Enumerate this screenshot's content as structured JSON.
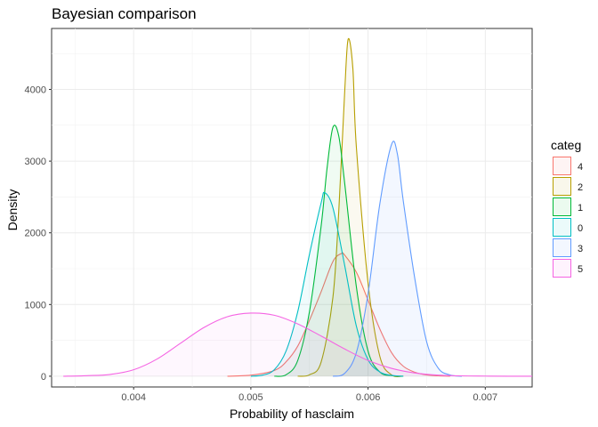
{
  "chart_data": {
    "type": "area",
    "title": "Bayesian comparison",
    "xlabel": "Probability of hasclaim",
    "ylabel": "Density",
    "xlim": [
      0.0033,
      0.0074
    ],
    "ylim": [
      -150,
      4850
    ],
    "x_ticks": [
      0.004,
      0.005,
      0.006,
      0.007
    ],
    "x_tick_labels": [
      "0.004",
      "0.005",
      "0.006",
      "0.007"
    ],
    "y_ticks": [
      0,
      1000,
      2000,
      3000,
      4000
    ],
    "y_tick_labels": [
      "0",
      "1000",
      "2000",
      "3000",
      "4000"
    ],
    "grid": true,
    "legend": {
      "title": "categ",
      "placement": "right"
    },
    "series": [
      {
        "name": "4",
        "color": "#F8766D",
        "fill_opacity": 0.06,
        "points": [
          [
            0.0048,
            0
          ],
          [
            0.005,
            15
          ],
          [
            0.0052,
            80
          ],
          [
            0.0053,
            200
          ],
          [
            0.0054,
            420
          ],
          [
            0.0055,
            780
          ],
          [
            0.0056,
            1180
          ],
          [
            0.0057,
            1600
          ],
          [
            0.00577,
            1710
          ],
          [
            0.0058,
            1690
          ],
          [
            0.0059,
            1450
          ],
          [
            0.006,
            1060
          ],
          [
            0.0061,
            660
          ],
          [
            0.0062,
            330
          ],
          [
            0.0063,
            140
          ],
          [
            0.0064,
            55
          ],
          [
            0.0065,
            18
          ],
          [
            0.0066,
            5
          ],
          [
            0.0067,
            0
          ]
        ]
      },
      {
        "name": "2",
        "color": "#B79F00",
        "fill_opacity": 0.06,
        "points": [
          [
            0.0054,
            0
          ],
          [
            0.0055,
            20
          ],
          [
            0.0056,
            200
          ],
          [
            0.0057,
            1100
          ],
          [
            0.00575,
            2300
          ],
          [
            0.0058,
            3950
          ],
          [
            0.00583,
            4700
          ],
          [
            0.00587,
            4300
          ],
          [
            0.0059,
            3200
          ],
          [
            0.006,
            1300
          ],
          [
            0.0061,
            280
          ],
          [
            0.0062,
            20
          ],
          [
            0.0063,
            0
          ]
        ]
      },
      {
        "name": "1",
        "color": "#00BA38",
        "fill_opacity": 0.06,
        "points": [
          [
            0.0052,
            0
          ],
          [
            0.0053,
            20
          ],
          [
            0.0054,
            220
          ],
          [
            0.0055,
            900
          ],
          [
            0.0056,
            2100
          ],
          [
            0.00565,
            2900
          ],
          [
            0.0057,
            3470
          ],
          [
            0.00575,
            3350
          ],
          [
            0.0058,
            2700
          ],
          [
            0.0059,
            1250
          ],
          [
            0.006,
            350
          ],
          [
            0.0061,
            60
          ],
          [
            0.0062,
            8
          ],
          [
            0.0063,
            0
          ]
        ]
      },
      {
        "name": "0",
        "color": "#00BFC4",
        "fill_opacity": 0.06,
        "points": [
          [
            0.005,
            0
          ],
          [
            0.0051,
            15
          ],
          [
            0.0052,
            90
          ],
          [
            0.0053,
            350
          ],
          [
            0.0054,
            900
          ],
          [
            0.0055,
            1700
          ],
          [
            0.0056,
            2420
          ],
          [
            0.00563,
            2560
          ],
          [
            0.0057,
            2350
          ],
          [
            0.0058,
            1550
          ],
          [
            0.0059,
            700
          ],
          [
            0.006,
            230
          ],
          [
            0.0061,
            60
          ],
          [
            0.0062,
            12
          ],
          [
            0.0063,
            0
          ]
        ]
      },
      {
        "name": "3",
        "color": "#619CFF",
        "fill_opacity": 0.08,
        "points": [
          [
            0.0057,
            0
          ],
          [
            0.0058,
            40
          ],
          [
            0.0059,
            330
          ],
          [
            0.006,
            1150
          ],
          [
            0.0061,
            2400
          ],
          [
            0.0062,
            3230
          ],
          [
            0.00625,
            3100
          ],
          [
            0.0063,
            2450
          ],
          [
            0.0064,
            1350
          ],
          [
            0.0065,
            480
          ],
          [
            0.0066,
            110
          ],
          [
            0.0067,
            18
          ],
          [
            0.0068,
            0
          ]
        ]
      },
      {
        "name": "5",
        "color": "#F564E3",
        "fill_opacity": 0.05,
        "points": [
          [
            0.0034,
            0
          ],
          [
            0.0036,
            8
          ],
          [
            0.0038,
            25
          ],
          [
            0.004,
            90
          ],
          [
            0.0042,
            240
          ],
          [
            0.0044,
            460
          ],
          [
            0.0046,
            680
          ],
          [
            0.0048,
            830
          ],
          [
            0.005,
            880
          ],
          [
            0.0052,
            850
          ],
          [
            0.0054,
            730
          ],
          [
            0.0056,
            560
          ],
          [
            0.0058,
            380
          ],
          [
            0.006,
            220
          ],
          [
            0.0062,
            110
          ],
          [
            0.0064,
            45
          ],
          [
            0.0066,
            15
          ],
          [
            0.0068,
            5
          ],
          [
            0.007,
            2
          ],
          [
            0.0072,
            0
          ],
          [
            0.0074,
            0
          ]
        ]
      }
    ]
  }
}
